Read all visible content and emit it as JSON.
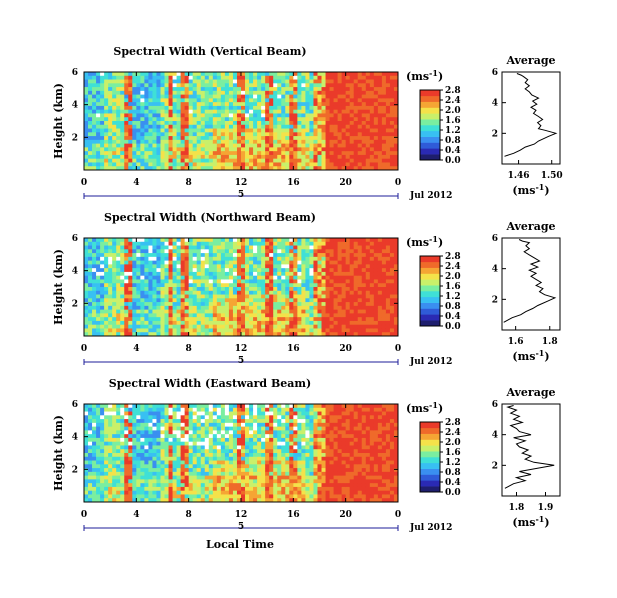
{
  "colors": {
    "colormap": [
      "#1e1e6e",
      "#2a2ab4",
      "#2f5bd8",
      "#3a8ff0",
      "#38c0f2",
      "#3fe0d6",
      "#7aeea0",
      "#c9f06a",
      "#f4e24a",
      "#f5a534",
      "#ef6a2a",
      "#ea3a2a"
    ],
    "background": "#ffffff",
    "line": "#000000"
  },
  "colorbar": {
    "unit": "(ms",
    "unit_sup": "-1",
    "unit_close": ")",
    "ticks": [
      "0.0",
      "0.4",
      "0.8",
      "1.2",
      "1.6",
      "2.0",
      "2.4",
      "2.8"
    ]
  },
  "shared": {
    "x_ticks": [
      "0",
      "4",
      "8",
      "12",
      "16",
      "20",
      "0"
    ],
    "y_ticks": [
      "2",
      "4",
      "6"
    ],
    "ylabel": "Height (km)",
    "date_day": "5",
    "date_label": "Jul 2012",
    "xlabel": "Local Time",
    "avg_title": "Average",
    "avg_xlabel": "(ms",
    "avg_xlabel_sup": "-1",
    "avg_xlabel_close": ")",
    "avg_y_ticks": [
      "2",
      "4",
      "6"
    ]
  },
  "chart_data": [
    {
      "type": "heatmap",
      "title": "Spectral Width (Vertical Beam)",
      "x_range_hours": [
        0,
        24
      ],
      "y_range_km": [
        0.5,
        6
      ],
      "z_range": [
        0,
        2.8
      ],
      "avg_profile": {
        "type": "line",
        "x_ticks": [
          "1.46",
          "1.50"
        ],
        "xlim": [
          1.44,
          1.51
        ],
        "ylim": [
          0,
          6
        ],
        "x": [
          1.443,
          1.454,
          1.462,
          1.468,
          1.479,
          1.484,
          1.496,
          1.505,
          1.492,
          1.484,
          1.487,
          1.483,
          1.489,
          1.484,
          1.478,
          1.481,
          1.475,
          1.482,
          1.477,
          1.484,
          1.476,
          1.473,
          1.468,
          1.473,
          1.468,
          1.471,
          1.466,
          1.463,
          1.458
        ],
        "y": [
          0.5,
          0.7,
          0.9,
          1.1,
          1.3,
          1.5,
          1.8,
          2.0,
          2.2,
          2.3,
          2.5,
          2.7,
          2.9,
          3.1,
          3.3,
          3.5,
          3.7,
          3.9,
          4.1,
          4.3,
          4.5,
          4.7,
          4.9,
          5.1,
          5.3,
          5.5,
          5.7,
          5.8,
          5.9
        ]
      }
    },
    {
      "type": "heatmap",
      "title": "Spectral Width (Northward Beam)",
      "x_range_hours": [
        0,
        24
      ],
      "y_range_km": [
        0.5,
        6
      ],
      "z_range": [
        0,
        2.8
      ],
      "avg_profile": {
        "type": "line",
        "x_ticks": [
          "1.6",
          "1.8"
        ],
        "xlim": [
          1.52,
          1.86
        ],
        "ylim": [
          0,
          6
        ],
        "x": [
          1.53,
          1.58,
          1.63,
          1.66,
          1.7,
          1.73,
          1.79,
          1.83,
          1.77,
          1.74,
          1.76,
          1.72,
          1.75,
          1.72,
          1.69,
          1.72,
          1.68,
          1.73,
          1.69,
          1.74,
          1.71,
          1.68,
          1.65,
          1.68,
          1.66,
          1.68,
          1.64,
          1.62
        ],
        "y": [
          0.5,
          0.8,
          1.0,
          1.2,
          1.4,
          1.6,
          1.9,
          2.1,
          2.3,
          2.5,
          2.7,
          2.9,
          3.1,
          3.3,
          3.5,
          3.7,
          3.9,
          4.1,
          4.3,
          4.5,
          4.7,
          4.9,
          5.1,
          5.3,
          5.5,
          5.7,
          5.8,
          5.9
        ]
      }
    },
    {
      "type": "heatmap",
      "title": "Spectral Width (Eastward Beam)",
      "x_range_hours": [
        0,
        24
      ],
      "y_range_km": [
        0.5,
        6
      ],
      "z_range": [
        0,
        2.8
      ],
      "avg_profile": {
        "type": "line",
        "x_ticks": [
          "1.8",
          "1.9"
        ],
        "xlim": [
          1.75,
          1.95
        ],
        "ylim": [
          0,
          6
        ],
        "x": [
          1.76,
          1.79,
          1.83,
          1.8,
          1.85,
          1.81,
          1.87,
          1.93,
          1.86,
          1.83,
          1.85,
          1.82,
          1.84,
          1.81,
          1.8,
          1.83,
          1.79,
          1.85,
          1.81,
          1.8,
          1.78,
          1.82,
          1.79,
          1.81,
          1.78,
          1.8,
          1.77,
          1.79
        ],
        "y": [
          0.5,
          0.8,
          1.0,
          1.2,
          1.4,
          1.6,
          1.8,
          2.0,
          2.2,
          2.4,
          2.6,
          2.8,
          3.0,
          3.2,
          3.4,
          3.6,
          3.8,
          4.0,
          4.2,
          4.4,
          4.6,
          4.8,
          5.0,
          5.2,
          5.4,
          5.6,
          5.8,
          5.9
        ]
      }
    }
  ]
}
